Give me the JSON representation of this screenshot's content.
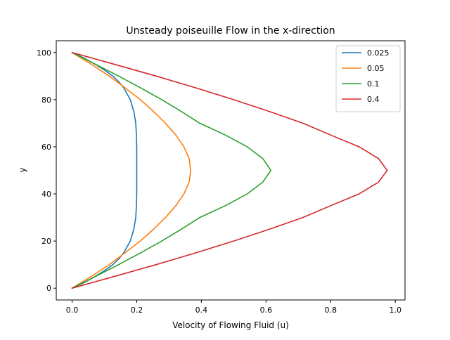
{
  "chart_data": {
    "type": "line",
    "title": "Unsteady poiseuille Flow in the x-direction",
    "xlabel": "Velocity of Flowing Fluid (u)",
    "ylabel": "y",
    "xlim": [
      -0.049,
      1.03
    ],
    "ylim": [
      -5,
      105
    ],
    "xticks": [
      0.0,
      0.2,
      0.4,
      0.6,
      0.8,
      1.0
    ],
    "xtick_labels": [
      "0.0",
      "0.2",
      "0.4",
      "0.6",
      "0.8",
      "1.0"
    ],
    "yticks": [
      0,
      20,
      40,
      60,
      80,
      100
    ],
    "ytick_labels": [
      "0",
      "20",
      "40",
      "60",
      "80",
      "100"
    ],
    "grid": false,
    "legend_position": "top-right",
    "series": [
      {
        "name": "0.025",
        "color": "#1f77b4",
        "y": [
          0,
          2.5,
          5,
          7.5,
          10,
          12.5,
          15,
          20,
          25,
          30,
          35,
          40,
          45,
          50,
          55,
          60,
          65,
          70,
          75,
          80,
          85,
          87.5,
          90,
          92.5,
          95,
          97.5,
          100
        ],
        "x": [
          0,
          0.039,
          0.072,
          0.101,
          0.126,
          0.145,
          0.16,
          0.18,
          0.191,
          0.197,
          0.199,
          0.2,
          0.2,
          0.2,
          0.2,
          0.2,
          0.199,
          0.197,
          0.191,
          0.18,
          0.16,
          0.145,
          0.126,
          0.101,
          0.072,
          0.039,
          0
        ]
      },
      {
        "name": "0.05",
        "color": "#ff7f0e",
        "y": [
          0,
          5,
          10,
          15,
          20,
          25,
          30,
          35,
          40,
          45,
          50,
          55,
          60,
          65,
          70,
          75,
          80,
          85,
          90,
          95,
          100
        ],
        "x": [
          0,
          0.06,
          0.115,
          0.164,
          0.211,
          0.252,
          0.289,
          0.321,
          0.346,
          0.362,
          0.367,
          0.362,
          0.346,
          0.321,
          0.289,
          0.252,
          0.211,
          0.164,
          0.115,
          0.06,
          0
        ]
      },
      {
        "name": "0.1",
        "color": "#2ca02c",
        "y": [
          0,
          5,
          10,
          15,
          20,
          25,
          30,
          35,
          40,
          45,
          50,
          55,
          60,
          65,
          70,
          75,
          80,
          85,
          90,
          95,
          100
        ],
        "x": [
          0,
          0.073,
          0.144,
          0.212,
          0.277,
          0.338,
          0.395,
          0.474,
          0.542,
          0.59,
          0.615,
          0.59,
          0.542,
          0.474,
          0.395,
          0.338,
          0.277,
          0.212,
          0.144,
          0.073,
          0
        ]
      },
      {
        "name": "0.4",
        "color": "#d62728",
        "y": [
          0,
          5,
          10,
          15,
          20,
          25,
          30,
          35,
          40,
          45,
          50,
          55,
          60,
          65,
          70,
          75,
          80,
          85,
          90,
          95,
          100
        ],
        "x": [
          0,
          0.131,
          0.26,
          0.383,
          0.5,
          0.61,
          0.714,
          0.8,
          0.888,
          0.948,
          0.975,
          0.948,
          0.888,
          0.8,
          0.714,
          0.61,
          0.5,
          0.383,
          0.26,
          0.131,
          0
        ]
      }
    ]
  }
}
